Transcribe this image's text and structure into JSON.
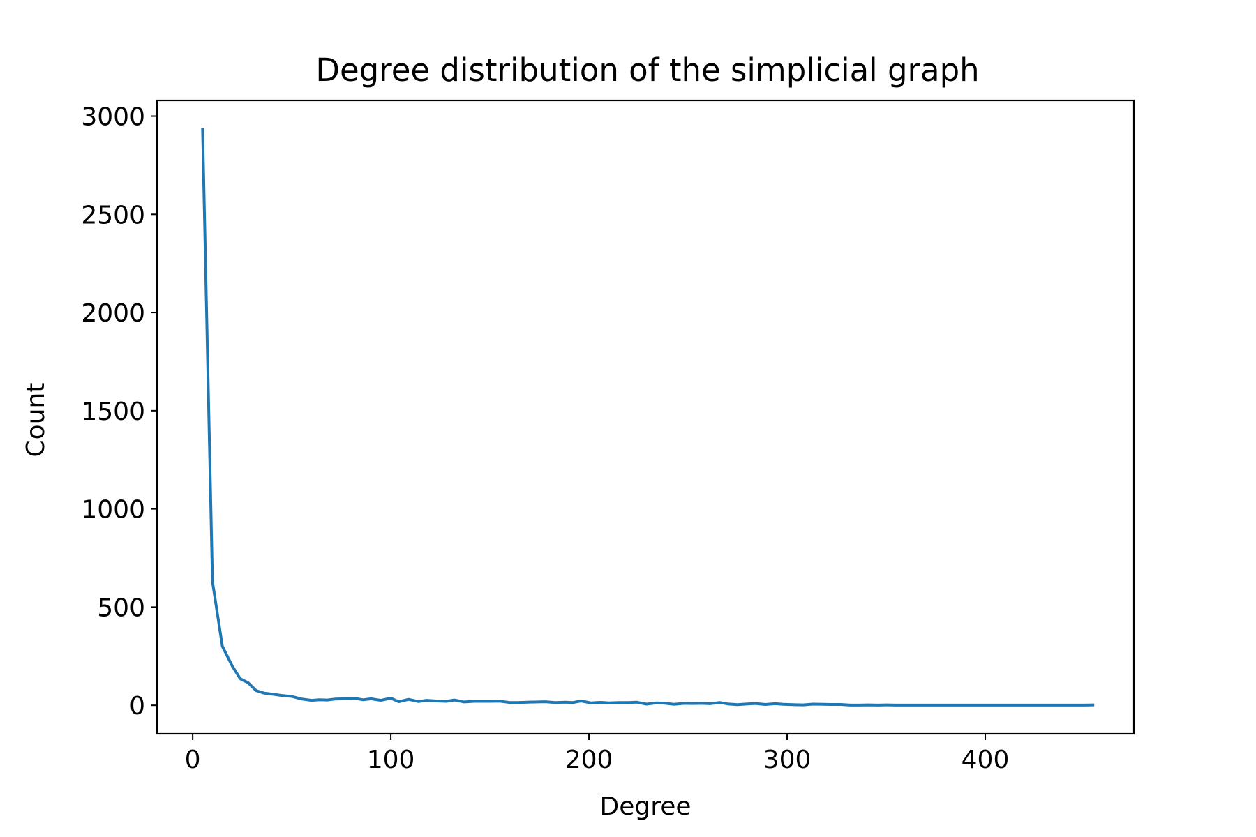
{
  "chart_data": {
    "type": "line",
    "title": "Degree distribution of the simplicial graph",
    "xlabel": "Degree",
    "ylabel": "Count",
    "xlim": [
      -18,
      475
    ],
    "ylim": [
      -145,
      3080
    ],
    "xticks": [
      0,
      100,
      200,
      300,
      400
    ],
    "yticks": [
      0,
      500,
      1000,
      1500,
      2000,
      2500,
      3000
    ],
    "grid": false,
    "legend": "none",
    "colors": {
      "line": "#1f77b4",
      "axes": "#000000",
      "background": "#ffffff"
    },
    "series": [
      {
        "x": [
          5,
          10,
          15,
          20,
          24,
          28,
          32,
          36,
          40,
          45,
          50,
          55,
          60,
          64,
          68,
          72,
          77,
          82,
          86,
          90,
          95,
          100,
          104,
          109,
          114,
          118,
          123,
          128,
          132,
          137,
          142,
          146,
          150,
          155,
          160,
          164,
          169,
          174,
          178,
          183,
          188,
          192,
          196,
          201,
          206,
          210,
          215,
          220,
          224,
          229,
          234,
          238,
          243,
          248,
          252,
          257,
          261,
          266,
          270,
          275,
          280,
          284,
          289,
          294,
          298,
          303,
          308,
          313,
          318,
          322,
          327,
          332,
          336,
          341,
          346,
          350,
          355,
          360,
          365,
          370,
          375,
          380,
          385,
          390,
          395,
          400,
          405,
          410,
          415,
          420,
          425,
          430,
          435,
          440,
          445,
          450,
          455
        ],
        "y": [
          2940,
          630,
          300,
          200,
          135,
          115,
          75,
          62,
          57,
          50,
          45,
          32,
          25,
          28,
          27,
          32,
          33,
          35,
          28,
          33,
          25,
          36,
          18,
          30,
          19,
          25,
          22,
          20,
          27,
          17,
          20,
          20,
          20,
          21,
          14,
          14,
          16,
          17,
          18,
          14,
          16,
          14,
          22,
          12,
          15,
          12,
          14,
          14,
          16,
          6,
          12,
          11,
          5,
          10,
          9,
          10,
          8,
          14,
          7,
          3,
          7,
          9,
          4,
          8,
          5,
          3,
          2,
          6,
          5,
          4,
          4,
          1,
          1,
          2,
          1,
          2,
          1,
          1,
          1,
          1,
          1,
          1,
          1,
          1,
          1,
          1,
          1,
          1,
          1,
          1,
          1,
          1,
          1,
          1,
          1,
          1,
          2
        ]
      }
    ]
  }
}
